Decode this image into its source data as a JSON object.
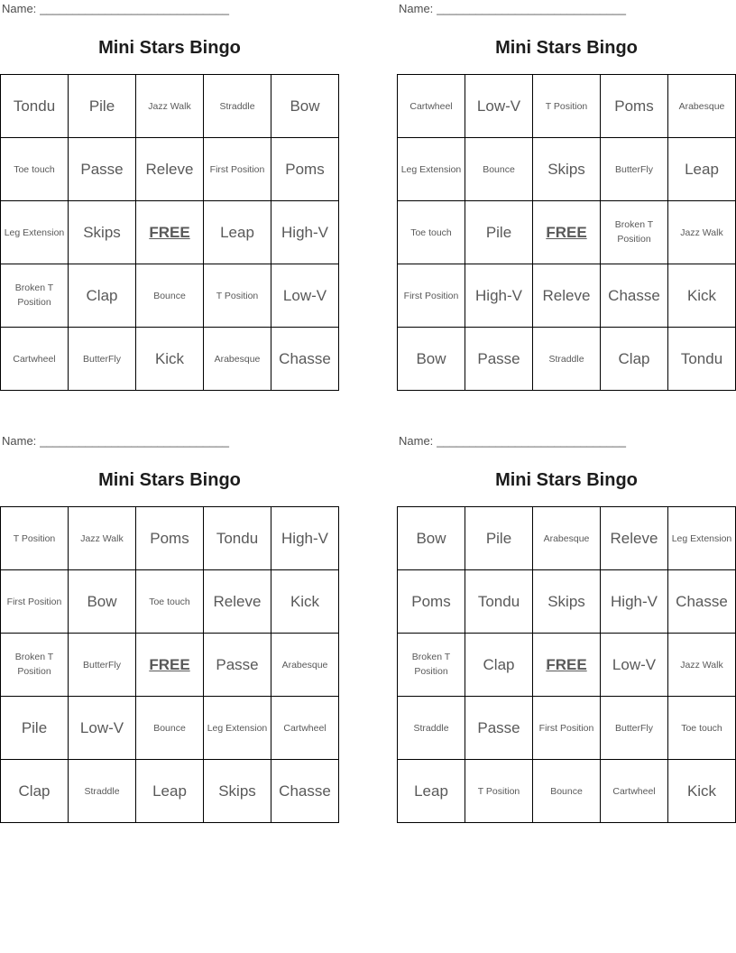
{
  "worksheet": {
    "name_label": "Name:",
    "name_line": "_____________________________",
    "card_title": "Mini Stars Bingo"
  },
  "styles": {
    "free_term": "FREE",
    "small_terms": [
      "Jazz Walk",
      "Straddle",
      "Toe touch",
      "First Position",
      "Leg Extension",
      "Broken T Position",
      "Bounce",
      "T Position",
      "Cartwheel",
      "ButterFly",
      "Arabesque"
    ],
    "text_color": "#595959",
    "title_color": "#1c1c1c",
    "border_color": "#000000",
    "background": "#ffffff"
  },
  "cards": [
    {
      "rows": [
        [
          "Tondu",
          "Pile",
          "Jazz Walk",
          "Straddle",
          "Bow"
        ],
        [
          "Toe touch",
          "Passe",
          "Releve",
          "First Position",
          "Poms"
        ],
        [
          "Leg Extension",
          "Skips",
          "FREE",
          "Leap",
          "High-V"
        ],
        [
          "Broken T Position",
          "Clap",
          "Bounce",
          "T Position",
          "Low-V"
        ],
        [
          "Cartwheel",
          "ButterFly",
          "Kick",
          "Arabesque",
          "Chasse"
        ]
      ]
    },
    {
      "rows": [
        [
          "Cartwheel",
          "Low-V",
          "T Position",
          "Poms",
          "Arabesque"
        ],
        [
          "Leg Extension",
          "Bounce",
          "Skips",
          "ButterFly",
          "Leap"
        ],
        [
          "Toe touch",
          "Pile",
          "FREE",
          "Broken T Position",
          "Jazz Walk"
        ],
        [
          "First Position",
          "High-V",
          "Releve",
          "Chasse",
          "Kick"
        ],
        [
          "Bow",
          "Passe",
          "Straddle",
          "Clap",
          "Tondu"
        ]
      ]
    },
    {
      "rows": [
        [
          "T Position",
          "Jazz Walk",
          "Poms",
          "Tondu",
          "High-V"
        ],
        [
          "First Position",
          "Bow",
          "Toe touch",
          "Releve",
          "Kick"
        ],
        [
          "Broken T Position",
          "ButterFly",
          "FREE",
          "Passe",
          "Arabesque"
        ],
        [
          "Pile",
          "Low-V",
          "Bounce",
          "Leg Extension",
          "Cartwheel"
        ],
        [
          "Clap",
          "Straddle",
          "Leap",
          "Skips",
          "Chasse"
        ]
      ]
    },
    {
      "rows": [
        [
          "Bow",
          "Pile",
          "Arabesque",
          "Releve",
          "Leg Extension"
        ],
        [
          "Poms",
          "Tondu",
          "Skips",
          "High-V",
          "Chasse"
        ],
        [
          "Broken T Position",
          "Clap",
          "FREE",
          "Low-V",
          "Jazz Walk"
        ],
        [
          "Straddle",
          "Passe",
          "First Position",
          "ButterFly",
          "Toe touch"
        ],
        [
          "Leap",
          "T Position",
          "Bounce",
          "Cartwheel",
          "Kick"
        ]
      ]
    }
  ]
}
